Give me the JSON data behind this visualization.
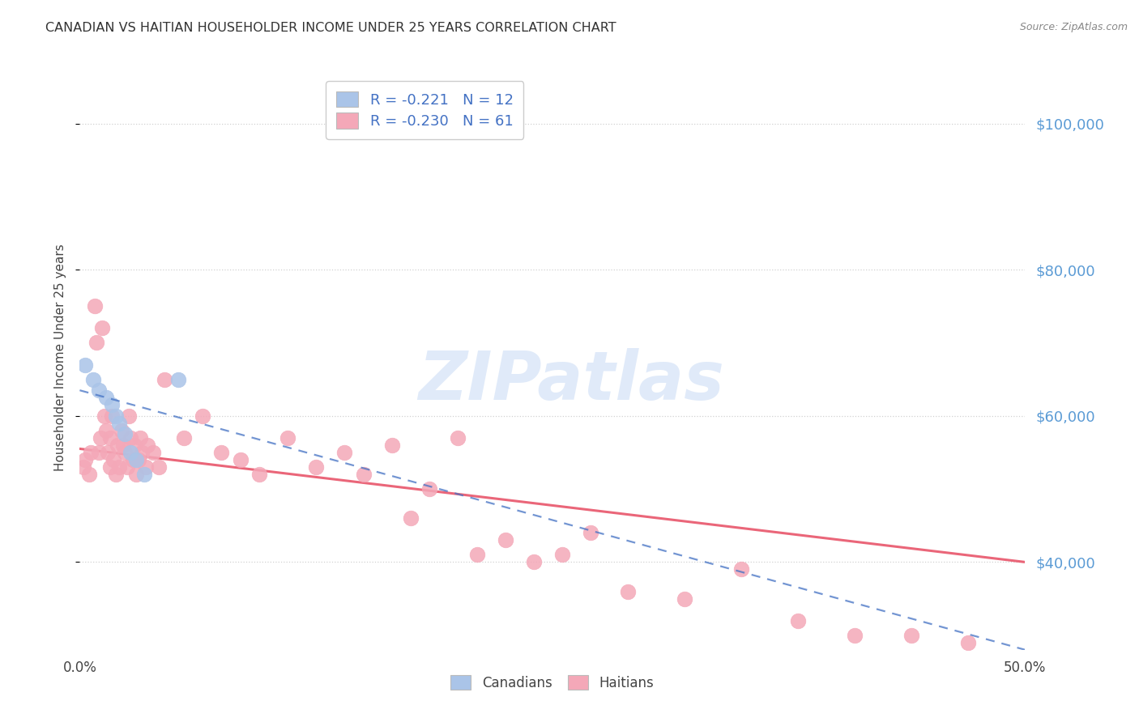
{
  "title": "CANADIAN VS HAITIAN HOUSEHOLDER INCOME UNDER 25 YEARS CORRELATION CHART",
  "source": "Source: ZipAtlas.com",
  "ylabel": "Householder Income Under 25 years",
  "xlim": [
    0.0,
    50.0
  ],
  "ylim": [
    28000,
    108000
  ],
  "yticks": [
    40000,
    60000,
    80000,
    100000
  ],
  "ytick_labels": [
    "$40,000",
    "$60,000",
    "$80,000",
    "$100,000"
  ],
  "legend_r_canadian": "-0.221",
  "legend_n_canadian": "12",
  "legend_r_haitian": "-0.230",
  "legend_n_haitian": "61",
  "canadian_color": "#aac4e8",
  "haitian_color": "#f4a8b8",
  "canadian_line_color": "#4472c4",
  "haitian_line_color": "#e8556a",
  "watermark_text": "ZIPatlas",
  "canadians_x": [
    0.3,
    0.7,
    1.0,
    1.4,
    1.7,
    1.9,
    2.1,
    2.4,
    2.7,
    3.0,
    3.4,
    5.2
  ],
  "canadians_y": [
    67000,
    65000,
    63500,
    62500,
    61500,
    60000,
    59000,
    57500,
    55000,
    54000,
    52000,
    65000
  ],
  "haitians_x": [
    0.2,
    0.3,
    0.5,
    0.6,
    0.8,
    0.9,
    1.0,
    1.1,
    1.2,
    1.3,
    1.4,
    1.5,
    1.6,
    1.6,
    1.7,
    1.8,
    1.9,
    2.0,
    2.1,
    2.2,
    2.3,
    2.4,
    2.5,
    2.6,
    2.7,
    2.8,
    2.9,
    3.0,
    3.1,
    3.2,
    3.3,
    3.5,
    3.6,
    3.9,
    4.2,
    4.5,
    5.5,
    6.5,
    7.5,
    8.5,
    9.5,
    11.0,
    12.5,
    14.0,
    15.0,
    16.5,
    17.5,
    18.5,
    20.0,
    21.0,
    22.5,
    24.0,
    25.5,
    27.0,
    29.0,
    32.0,
    35.0,
    38.0,
    41.0,
    44.0,
    47.0
  ],
  "haitians_y": [
    53000,
    54000,
    52000,
    55000,
    75000,
    70000,
    55000,
    57000,
    72000,
    60000,
    58000,
    55000,
    57000,
    53000,
    60000,
    54000,
    52000,
    56000,
    53000,
    58000,
    56000,
    55000,
    53000,
    60000,
    57000,
    54000,
    56000,
    52000,
    54000,
    57000,
    55000,
    53000,
    56000,
    55000,
    53000,
    65000,
    57000,
    60000,
    55000,
    54000,
    52000,
    57000,
    53000,
    55000,
    52000,
    56000,
    46000,
    50000,
    57000,
    41000,
    43000,
    40000,
    41000,
    44000,
    36000,
    35000,
    39000,
    32000,
    30000,
    30000,
    29000
  ],
  "canadian_line_x0": 0,
  "canadian_line_y0": 63500,
  "canadian_line_x1": 50,
  "canadian_line_y1": 28000,
  "haitian_line_x0": 0,
  "haitian_line_y0": 55500,
  "haitian_line_x1": 50,
  "haitian_line_y1": 40000
}
